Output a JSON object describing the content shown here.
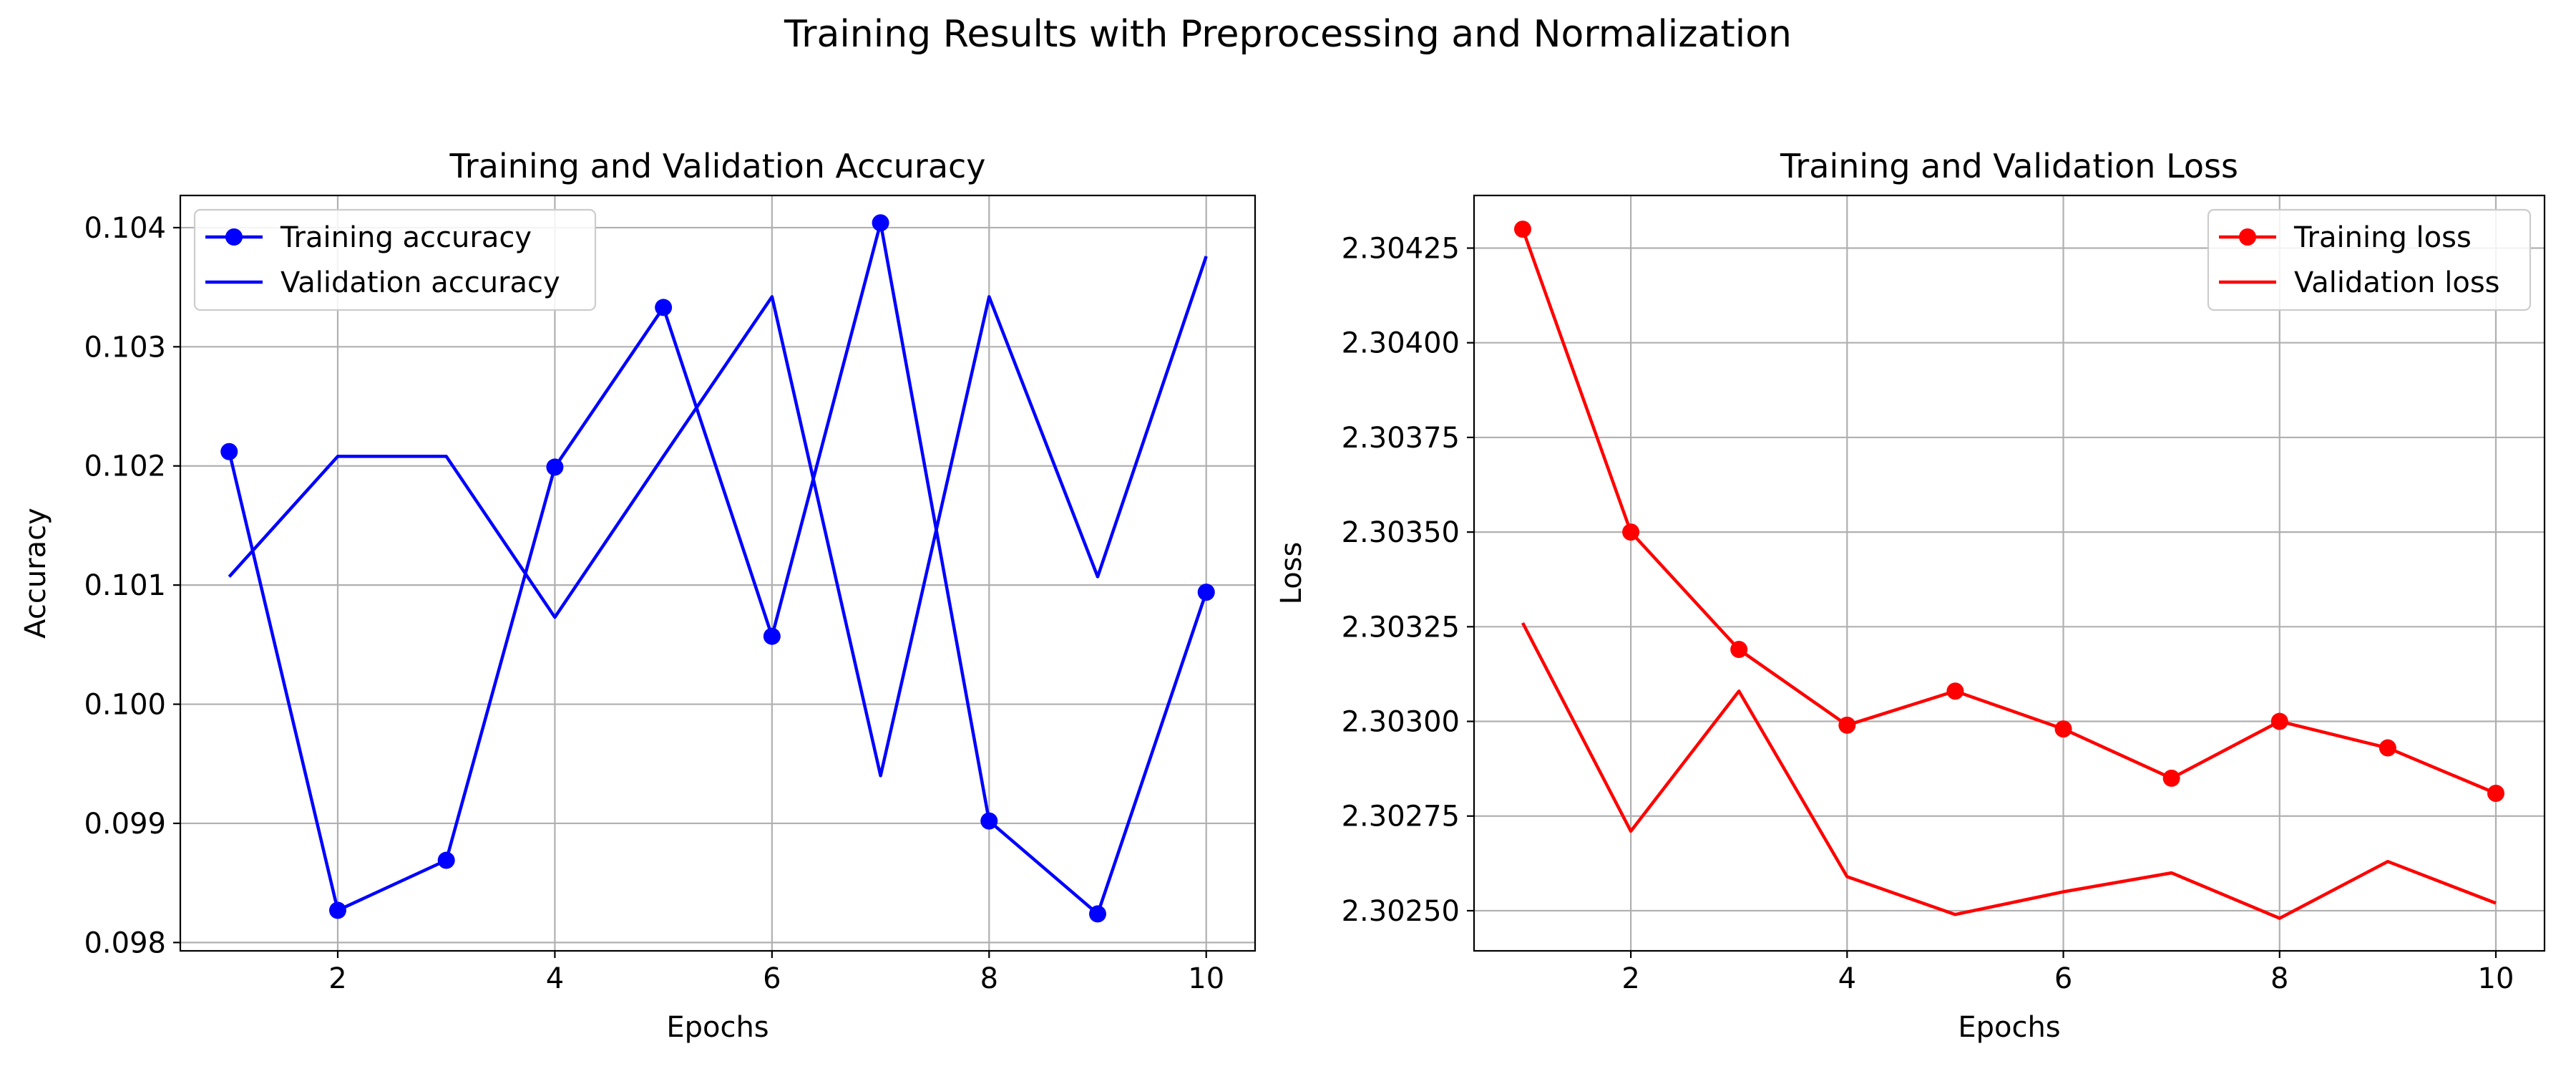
{
  "suptitle": "Training Results with Preprocessing and Normalization",
  "chart_data": [
    {
      "type": "line",
      "title": "Training and Validation Accuracy",
      "xlabel": "Epochs",
      "ylabel": "Accuracy",
      "x": [
        1,
        2,
        3,
        4,
        5,
        6,
        7,
        8,
        9,
        10
      ],
      "xlim": [
        0.55,
        10.45
      ],
      "ylim": [
        0.09793,
        0.10427
      ],
      "xticks": [
        2,
        4,
        6,
        8,
        10
      ],
      "xtick_labels": [
        "2",
        "4",
        "6",
        "8",
        "10"
      ],
      "yticks": [
        0.098,
        0.099,
        0.1,
        0.101,
        0.102,
        0.103,
        0.104
      ],
      "ytick_labels": [
        "0.098",
        "0.099",
        "0.100",
        "0.101",
        "0.102",
        "0.103",
        "0.104"
      ],
      "grid": true,
      "legend_loc": "upper left",
      "series": [
        {
          "name": "Training accuracy",
          "color": "#0000ff",
          "marker": "circle",
          "values": [
            0.10212,
            0.09827,
            0.09869,
            0.10199,
            0.10333,
            0.10057,
            0.10404,
            0.09902,
            0.09824,
            0.10094
          ]
        },
        {
          "name": "Validation accuracy",
          "color": "#0000ff",
          "marker": "none",
          "values": [
            0.10107,
            0.10208,
            0.10208,
            0.10073,
            0.10208,
            0.10342,
            0.0994,
            0.10342,
            0.10107,
            0.10376
          ]
        }
      ]
    },
    {
      "type": "line",
      "title": "Training and Validation Loss",
      "xlabel": "Epochs",
      "ylabel": "Loss",
      "x": [
        1,
        2,
        3,
        4,
        5,
        6,
        7,
        8,
        9,
        10
      ],
      "xlim": [
        0.55,
        10.45
      ],
      "ylim": [
        2.302394,
        2.304389
      ],
      "xticks": [
        2,
        4,
        6,
        8,
        10
      ],
      "xtick_labels": [
        "2",
        "4",
        "6",
        "8",
        "10"
      ],
      "yticks": [
        2.3025,
        2.30275,
        2.303,
        2.30325,
        2.3035,
        2.30375,
        2.304,
        2.30425
      ],
      "ytick_labels": [
        "2.30250",
        "2.30275",
        "2.30300",
        "2.30325",
        "2.30350",
        "2.30375",
        "2.30400",
        "2.30425"
      ],
      "grid": true,
      "legend_loc": "upper right",
      "series": [
        {
          "name": "Training loss",
          "color": "#ff0000",
          "marker": "circle",
          "values": [
            2.3043,
            2.3035,
            2.30319,
            2.30299,
            2.30308,
            2.30298,
            2.30285,
            2.303,
            2.30293,
            2.30281
          ]
        },
        {
          "name": "Validation loss",
          "color": "#ff0000",
          "marker": "none",
          "values": [
            2.30326,
            2.30271,
            2.30308,
            2.30259,
            2.30249,
            2.30255,
            2.3026,
            2.30248,
            2.30263,
            2.30252
          ]
        }
      ]
    }
  ]
}
